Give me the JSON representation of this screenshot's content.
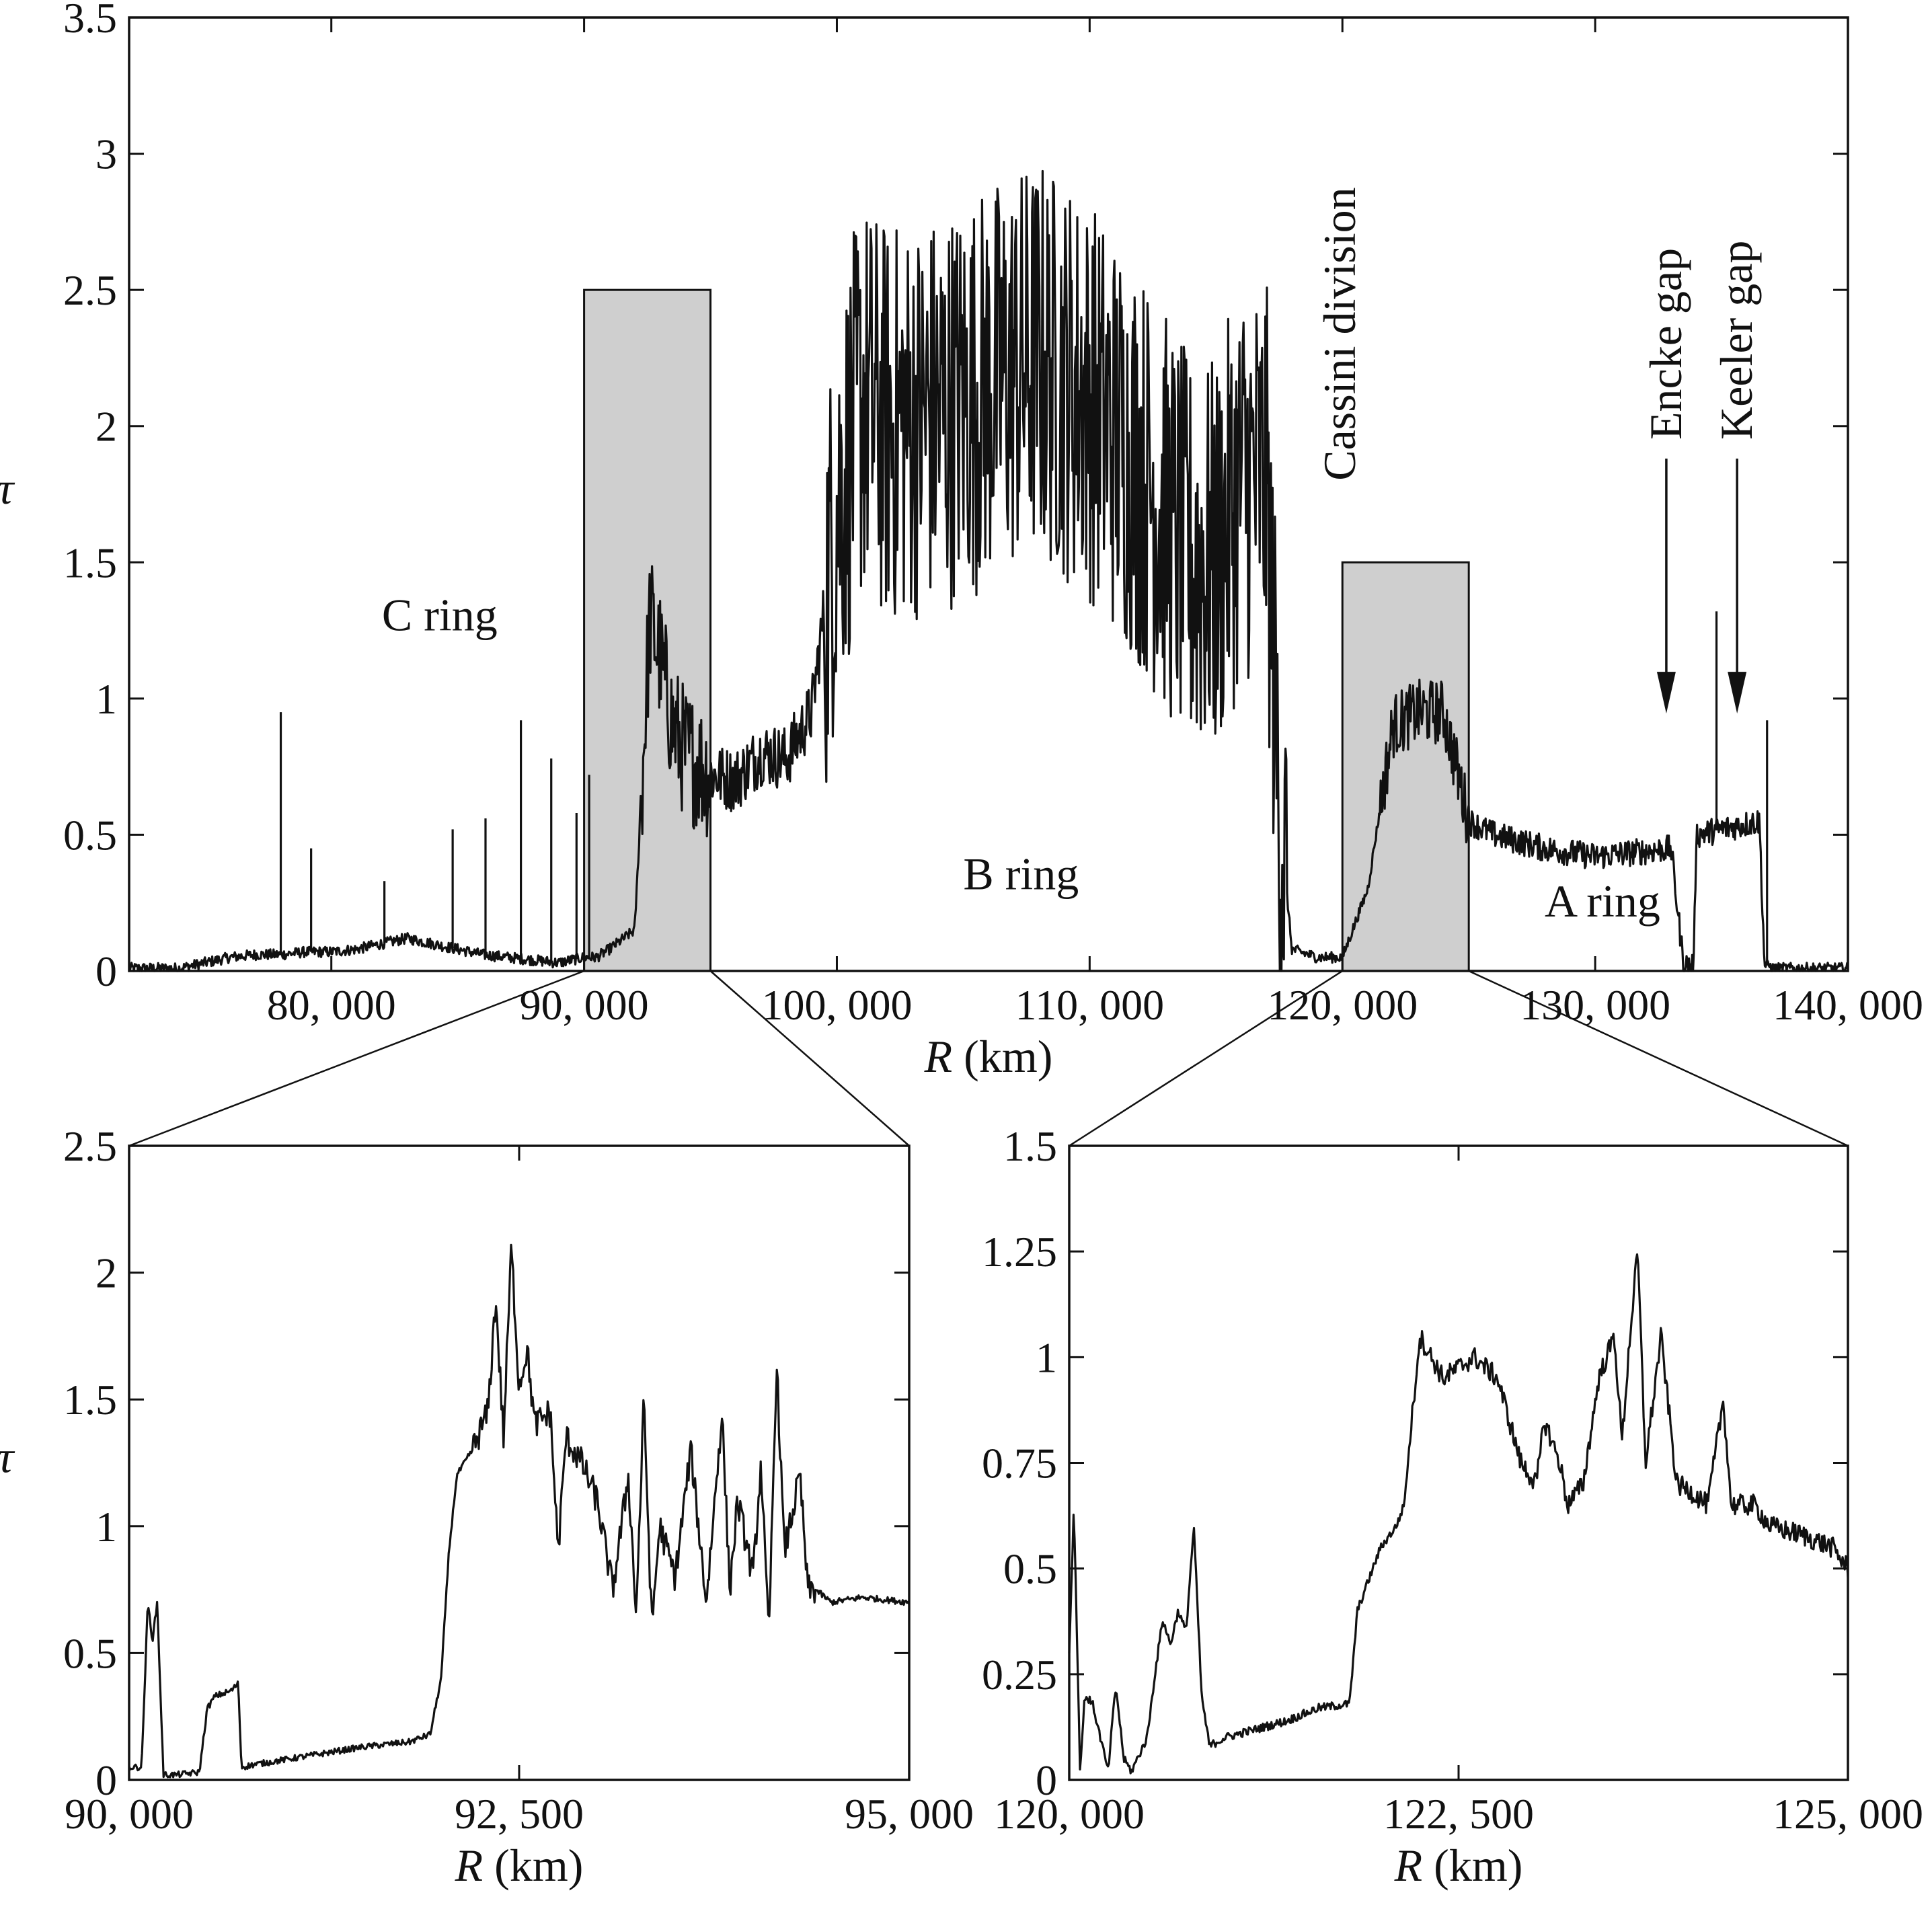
{
  "chart_data": [
    {
      "type": "line",
      "id": "main",
      "xlabel_italic": "R",
      "xlabel_unit": "(km)",
      "ylabel": "τ",
      "xlim": [
        72000,
        140000
      ],
      "ylim": [
        0,
        3.5
      ],
      "xticks": [
        80000,
        90000,
        100000,
        110000,
        120000,
        130000,
        140000
      ],
      "xtick_labels": [
        "80, 000",
        "90, 000",
        "100, 000",
        "110, 000",
        "120, 000",
        "130, 000",
        "140, 000"
      ],
      "yticks": [
        0,
        0.5,
        1,
        1.5,
        2,
        2.5,
        3,
        3.5
      ],
      "ytick_labels": [
        "0",
        "0.5",
        "1",
        "1.5",
        "2",
        "2.5",
        "3",
        "3.5"
      ],
      "highlight_regions": [
        {
          "x": [
            90000,
            95000
          ],
          "y": [
            0,
            2.5
          ]
        },
        {
          "x": [
            120000,
            125000
          ],
          "y": [
            0,
            1.5
          ]
        }
      ],
      "annotations": [
        {
          "text": "C ring",
          "x": 82000,
          "y": 1.25
        },
        {
          "text": "B ring",
          "x": 105000,
          "y": 0.3
        },
        {
          "text": "A ring",
          "x": 128000,
          "y": 0.2
        },
        {
          "text": "Cassini division",
          "x": 120500,
          "y": 1.8,
          "rotated": true
        },
        {
          "text": "Encke gap",
          "x": 133400,
          "y": 1.95,
          "rotated": true,
          "arrow_to": 0.95
        },
        {
          "text": "Keeler gap",
          "x": 136200,
          "y": 1.95,
          "rotated": true,
          "arrow_to": 0.95
        }
      ],
      "profile": [
        [
          72000,
          0.01
        ],
        [
          74000,
          0.01
        ],
        [
          75000,
          0.03
        ],
        [
          76000,
          0.05
        ],
        [
          77000,
          0.06
        ],
        [
          78000,
          0.06
        ],
        [
          79000,
          0.07
        ],
        [
          80000,
          0.07
        ],
        [
          81000,
          0.08
        ],
        [
          82000,
          0.1
        ],
        [
          83000,
          0.12
        ],
        [
          84000,
          0.1
        ],
        [
          85000,
          0.08
        ],
        [
          86000,
          0.06
        ],
        [
          87000,
          0.05
        ],
        [
          88000,
          0.04
        ],
        [
          89000,
          0.03
        ],
        [
          90000,
          0.05
        ],
        [
          90500,
          0.05
        ],
        [
          91000,
          0.08
        ],
        [
          92000,
          0.15
        ],
        [
          92300,
          0.7
        ],
        [
          92600,
          1.3
        ],
        [
          93000,
          1.15
        ],
        [
          93500,
          0.9
        ],
        [
          94000,
          0.8
        ],
        [
          95000,
          0.72
        ],
        [
          96000,
          0.7
        ],
        [
          97000,
          0.8
        ],
        [
          98000,
          0.78
        ],
        [
          99000,
          0.95
        ],
        [
          100000,
          1.7
        ],
        [
          101000,
          2.1
        ],
        [
          102000,
          2.0
        ],
        [
          104000,
          2.05
        ],
        [
          106000,
          2.15
        ],
        [
          108000,
          2.25
        ],
        [
          110000,
          2.1
        ],
        [
          112000,
          1.85
        ],
        [
          114000,
          1.5
        ],
        [
          115000,
          1.5
        ],
        [
          116000,
          1.8
        ],
        [
          117000,
          1.8
        ],
        [
          117500,
          0.6
        ],
        [
          118000,
          0.08
        ],
        [
          119000,
          0.05
        ],
        [
          120000,
          0.05
        ],
        [
          121000,
          0.3
        ],
        [
          122000,
          0.9
        ],
        [
          123000,
          0.95
        ],
        [
          124000,
          0.95
        ],
        [
          125000,
          0.55
        ],
        [
          126000,
          0.5
        ],
        [
          128000,
          0.45
        ],
        [
          130000,
          0.42
        ],
        [
          133000,
          0.45
        ],
        [
          133500,
          0.02
        ],
        [
          133900,
          0.02
        ],
        [
          134000,
          0.5
        ],
        [
          136500,
          0.55
        ],
        [
          136700,
          0.02
        ],
        [
          136900,
          0.02
        ],
        [
          137000,
          0.01
        ],
        [
          140000,
          0.01
        ]
      ],
      "spikes": [
        [
          78000,
          0.95
        ],
        [
          79200,
          0.45
        ],
        [
          82100,
          0.33
        ],
        [
          84800,
          0.52
        ],
        [
          86100,
          0.56
        ],
        [
          87500,
          0.92
        ],
        [
          88700,
          0.78
        ],
        [
          89700,
          0.58
        ],
        [
          90200,
          0.72
        ],
        [
          134800,
          1.32
        ],
        [
          136800,
          0.92
        ]
      ]
    },
    {
      "type": "line",
      "id": "inset_c",
      "xlabel_italic": "R",
      "xlabel_unit": "(km)",
      "ylabel": "τ",
      "xlim": [
        90000,
        95000
      ],
      "ylim": [
        0,
        2.5
      ],
      "xticks": [
        90000,
        92500,
        95000
      ],
      "xtick_labels": [
        "90, 000",
        "92, 500",
        "95, 000"
      ],
      "yticks": [
        0,
        0.5,
        1,
        1.5,
        2,
        2.5
      ],
      "ytick_labels": [
        "0",
        "0.5",
        "1",
        "1.5",
        "2",
        "2.5"
      ],
      "profile": [
        [
          90000,
          0.05
        ],
        [
          90080,
          0.05
        ],
        [
          90120,
          0.7
        ],
        [
          90150,
          0.55
        ],
        [
          90180,
          0.7
        ],
        [
          90220,
          0.02
        ],
        [
          90300,
          0.02
        ],
        [
          90450,
          0.03
        ],
        [
          90500,
          0.28
        ],
        [
          90550,
          0.33
        ],
        [
          90650,
          0.35
        ],
        [
          90700,
          0.38
        ],
        [
          90720,
          0.05
        ],
        [
          90800,
          0.06
        ],
        [
          91000,
          0.08
        ],
        [
          91200,
          0.1
        ],
        [
          91500,
          0.13
        ],
        [
          91800,
          0.15
        ],
        [
          91930,
          0.18
        ],
        [
          92000,
          0.4
        ],
        [
          92050,
          0.9
        ],
        [
          92100,
          1.2
        ],
        [
          92200,
          1.3
        ],
        [
          92300,
          1.45
        ],
        [
          92350,
          1.9
        ],
        [
          92400,
          1.35
        ],
        [
          92450,
          2.1
        ],
        [
          92500,
          1.55
        ],
        [
          92550,
          1.7
        ],
        [
          92600,
          1.4
        ],
        [
          92700,
          1.45
        ],
        [
          92750,
          0.9
        ],
        [
          92800,
          1.35
        ],
        [
          92900,
          1.25
        ],
        [
          93000,
          1.1
        ],
        [
          93100,
          0.75
        ],
        [
          93200,
          1.2
        ],
        [
          93250,
          0.65
        ],
        [
          93300,
          1.5
        ],
        [
          93350,
          0.6
        ],
        [
          93400,
          1.0
        ],
        [
          93500,
          0.8
        ],
        [
          93600,
          1.3
        ],
        [
          93700,
          0.7
        ],
        [
          93800,
          1.45
        ],
        [
          93850,
          0.75
        ],
        [
          93900,
          1.1
        ],
        [
          94000,
          0.8
        ],
        [
          94050,
          1.25
        ],
        [
          94100,
          0.55
        ],
        [
          94150,
          1.65
        ],
        [
          94200,
          0.9
        ],
        [
          94300,
          1.2
        ],
        [
          94350,
          0.75
        ],
        [
          94400,
          0.75
        ],
        [
          94500,
          0.7
        ],
        [
          94700,
          0.72
        ],
        [
          95000,
          0.7
        ]
      ]
    },
    {
      "type": "line",
      "id": "inset_a",
      "xlabel_italic": "R",
      "xlabel_unit": "(km)",
      "xlim": [
        120000,
        125000
      ],
      "ylim": [
        0,
        1.5
      ],
      "xticks": [
        120000,
        122500,
        125000
      ],
      "xtick_labels": [
        "120, 000",
        "122, 500",
        "125, 000"
      ],
      "yticks": [
        0,
        0.25,
        0.5,
        0.75,
        1,
        1.25,
        1.5
      ],
      "ytick_labels": [
        "0",
        "0.25",
        "0.5",
        "0.75",
        "1",
        "1.25",
        "1.5"
      ],
      "profile": [
        [
          120000,
          0.3
        ],
        [
          120030,
          0.65
        ],
        [
          120070,
          0.02
        ],
        [
          120100,
          0.2
        ],
        [
          120150,
          0.18
        ],
        [
          120200,
          0.1
        ],
        [
          120250,
          0.02
        ],
        [
          120280,
          0.15
        ],
        [
          120300,
          0.22
        ],
        [
          120350,
          0.05
        ],
        [
          120400,
          0.02
        ],
        [
          120500,
          0.1
        ],
        [
          120550,
          0.25
        ],
        [
          120600,
          0.38
        ],
        [
          120650,
          0.32
        ],
        [
          120700,
          0.4
        ],
        [
          120750,
          0.35
        ],
        [
          120800,
          0.6
        ],
        [
          120850,
          0.2
        ],
        [
          120900,
          0.08
        ],
        [
          121000,
          0.1
        ],
        [
          121200,
          0.12
        ],
        [
          121400,
          0.14
        ],
        [
          121600,
          0.17
        ],
        [
          121800,
          0.18
        ],
        [
          121850,
          0.4
        ],
        [
          121900,
          0.45
        ],
        [
          122000,
          0.55
        ],
        [
          122100,
          0.6
        ],
        [
          122150,
          0.65
        ],
        [
          122250,
          1.05
        ],
        [
          122400,
          0.95
        ],
        [
          122600,
          1.0
        ],
        [
          122750,
          0.95
        ],
        [
          122900,
          0.75
        ],
        [
          123000,
          0.7
        ],
        [
          123050,
          0.85
        ],
        [
          123150,
          0.75
        ],
        [
          123200,
          0.65
        ],
        [
          123300,
          0.7
        ],
        [
          123400,
          0.95
        ],
        [
          123500,
          1.05
        ],
        [
          123550,
          0.8
        ],
        [
          123600,
          1.05
        ],
        [
          123650,
          1.25
        ],
        [
          123700,
          0.75
        ],
        [
          123800,
          1.05
        ],
        [
          123900,
          0.7
        ],
        [
          124000,
          0.68
        ],
        [
          124100,
          0.65
        ],
        [
          124200,
          0.9
        ],
        [
          124250,
          0.65
        ],
        [
          124400,
          0.65
        ],
        [
          124500,
          0.6
        ],
        [
          124700,
          0.58
        ],
        [
          124900,
          0.55
        ],
        [
          125000,
          0.5
        ]
      ]
    }
  ]
}
